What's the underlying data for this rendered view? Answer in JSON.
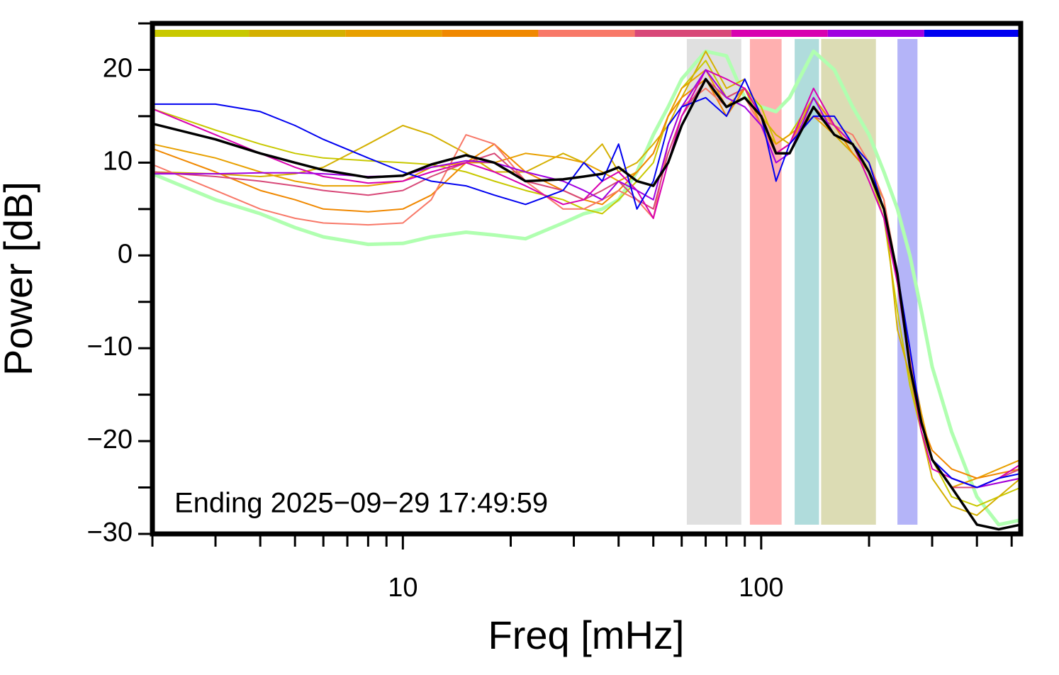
{
  "chart_data": {
    "type": "line",
    "xscale": "log",
    "xlabel": "Freq [mHz]",
    "ylabel": "Power [dB]",
    "annotation": "Ending 2025−09−29 17:49:59",
    "xlim": [
      2,
      530
    ],
    "ylim": [
      -30,
      25
    ],
    "xticks": [
      10,
      100
    ],
    "xminor_ticks": [
      2,
      3,
      4,
      5,
      6,
      7,
      8,
      9,
      20,
      30,
      40,
      50,
      60,
      70,
      80,
      90,
      200,
      300,
      400,
      500
    ],
    "yticks": [
      {
        "value": -30,
        "label": "−30"
      },
      {
        "value": -20,
        "label": "−20"
      },
      {
        "value": -10,
        "label": "−10"
      },
      0,
      10,
      20
    ],
    "yminor_ticks": [
      -25,
      -15,
      -5,
      5,
      15,
      25
    ],
    "colorbar": [
      "#c8c800",
      "#d4b000",
      "#e8a000",
      "#f08800",
      "#f87868",
      "#d84878",
      "#d800b0",
      "#a000e0",
      "#0000f0"
    ],
    "bands": [
      {
        "x": [
          62,
          88
        ],
        "color": "#e0e0e0"
      },
      {
        "x": [
          93,
          114
        ],
        "color": "#ffb0b0"
      },
      {
        "x": [
          124,
          145
        ],
        "color": "#b0dcdc"
      },
      {
        "x": [
          147,
          209
        ],
        "color": "#dcdcb4"
      },
      {
        "x": [
          240,
          273
        ],
        "color": "#b4b4f8"
      }
    ],
    "x": [
      2,
      3,
      4,
      5,
      6,
      8,
      10,
      12,
      15,
      18,
      22,
      28,
      32,
      36,
      40,
      45,
      50,
      55,
      60,
      70,
      80,
      90,
      100,
      110,
      120,
      140,
      160,
      180,
      200,
      220,
      240,
      260,
      280,
      300,
      340,
      400,
      460,
      530
    ],
    "series": [
      {
        "color": "#b0ffb0",
        "width": 5,
        "values": [
          8.8,
          6,
          4.5,
          3,
          2,
          1.2,
          1.3,
          2,
          2.5,
          2.2,
          1.8,
          3.5,
          4.5,
          5,
          6,
          9,
          13,
          16,
          19,
          22,
          21.5,
          17,
          16,
          15.5,
          17,
          22,
          20,
          16,
          13,
          9,
          5,
          0,
          -6,
          -12,
          -19,
          -26,
          -29,
          -28.5
        ]
      },
      {
        "color": "#c8c800",
        "width": 2,
        "values": [
          15.8,
          13.5,
          12,
          11,
          10.5,
          10.2,
          10,
          9.8,
          9,
          8,
          7,
          6,
          5,
          4.5,
          6,
          8,
          10,
          15,
          18,
          21,
          17,
          18,
          16,
          12,
          13,
          17,
          14,
          12,
          9,
          4,
          -6,
          -14,
          -19,
          -22,
          -26,
          -27,
          -26,
          -25
        ]
      },
      {
        "color": "#d4b000",
        "width": 2,
        "values": [
          9,
          8.8,
          8.5,
          8.8,
          9.5,
          12,
          14,
          13,
          11,
          9,
          9,
          11,
          10,
          12,
          9,
          10,
          12,
          14,
          17,
          22,
          18,
          19,
          15,
          13,
          12,
          16,
          13,
          11,
          9,
          6,
          -8,
          -13,
          -19,
          -24,
          -27,
          -28,
          -26,
          -24
        ]
      },
      {
        "color": "#e8a000",
        "width": 2,
        "values": [
          12,
          10.5,
          9,
          8,
          7.5,
          7.5,
          8,
          9.5,
          10,
          10,
          11,
          10.5,
          10,
          9,
          8,
          9,
          11,
          15,
          18,
          20,
          16,
          18,
          14,
          12,
          13,
          15,
          13,
          12,
          10,
          6,
          -3,
          -11,
          -17,
          -22,
          -25,
          -24,
          -23,
          -22
        ]
      },
      {
        "color": "#f08800",
        "width": 2,
        "values": [
          11.5,
          9,
          7,
          6,
          5,
          4.7,
          5,
          6.5,
          10,
          12,
          9,
          7,
          6,
          5.5,
          7,
          9,
          11,
          15,
          17,
          19,
          15,
          18,
          15,
          11,
          12,
          17,
          14,
          11,
          9,
          5,
          -3,
          -12,
          -18,
          -21,
          -23,
          -24,
          -23.5,
          -23
        ]
      },
      {
        "color": "#f87868",
        "width": 2,
        "values": [
          9.8,
          7,
          5,
          4,
          3.5,
          3.3,
          3.5,
          6,
          13,
          12,
          8,
          5,
          5,
          6,
          7,
          6,
          4,
          12,
          16,
          18,
          16,
          17,
          14,
          11,
          12,
          16,
          14,
          13,
          10,
          6,
          -2,
          -11,
          -18,
          -22,
          -24,
          -25,
          -24.5,
          -24
        ]
      },
      {
        "color": "#d84878",
        "width": 2,
        "values": [
          9,
          8.5,
          8,
          7.5,
          7,
          6.5,
          7,
          8.5,
          10,
          11,
          8,
          7,
          6,
          7,
          8,
          6,
          5,
          11,
          15,
          19,
          17,
          18,
          15,
          11,
          12,
          15,
          14,
          12,
          10,
          5,
          -2,
          -12,
          -18,
          -22,
          -25,
          -25,
          -24,
          -23
        ]
      },
      {
        "color": "#d800b0",
        "width": 2,
        "values": [
          15.8,
          13,
          11,
          9.5,
          8.5,
          7.8,
          8,
          9,
          10,
          9,
          7.5,
          5.5,
          6,
          8,
          9,
          7,
          4,
          10,
          15,
          20,
          19,
          18,
          15,
          11,
          12,
          18,
          14,
          12,
          8,
          4,
          -3,
          -12,
          -19,
          -23,
          -24,
          -25,
          -24,
          -22.5
        ]
      },
      {
        "color": "#a000e0",
        "width": 2,
        "values": [
          8.8,
          8.8,
          8.9,
          8.9,
          8.8,
          8.5,
          8.6,
          9.5,
          10.2,
          10,
          9,
          8,
          7,
          6,
          8,
          7,
          6,
          12,
          16,
          20,
          17,
          16,
          14,
          10,
          11,
          17,
          13,
          12,
          9,
          5,
          -2,
          -12,
          -18,
          -22,
          -24,
          -25,
          -24.5,
          -24
        ]
      },
      {
        "color": "#0000f0",
        "width": 2,
        "values": [
          16.3,
          16.3,
          15.5,
          14,
          12.5,
          10.5,
          9,
          8,
          7.5,
          6.5,
          5.5,
          7,
          10,
          8,
          12,
          5,
          8,
          14,
          16,
          17,
          15,
          19,
          15,
          8,
          12,
          15,
          15,
          12,
          10,
          5,
          -2,
          -10,
          -18,
          -22,
          -24,
          -25,
          -24,
          -23.5
        ]
      },
      {
        "color": "#000000",
        "width": 3.5,
        "values": [
          14.2,
          12.5,
          11,
          10,
          9.2,
          8.4,
          8.6,
          9.8,
          10.8,
          10,
          8,
          8.2,
          8.5,
          8.8,
          9.5,
          8,
          7.5,
          10,
          14,
          19,
          16,
          17,
          15,
          11,
          11,
          16,
          13,
          12,
          9,
          5,
          -2,
          -12,
          -18,
          -22,
          -25,
          -29,
          -29.5,
          -29
        ]
      }
    ]
  }
}
